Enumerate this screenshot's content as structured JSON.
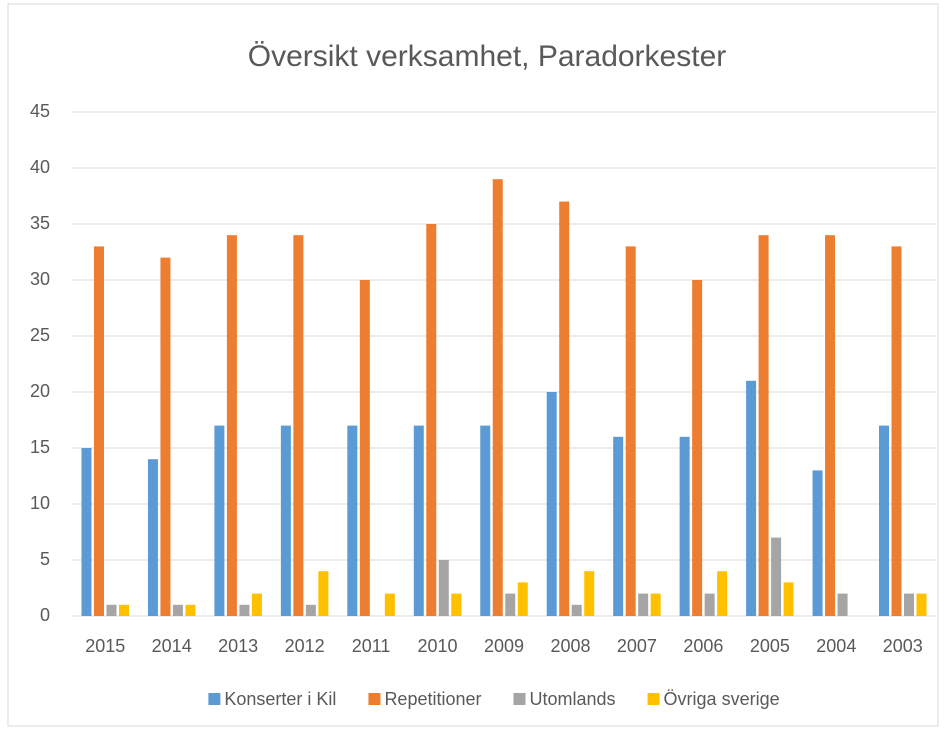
{
  "chart_data": {
    "type": "bar",
    "title": "Översikt verksamhet, Paradorkester",
    "categories": [
      "2015",
      "2014",
      "2013",
      "2012",
      "2011",
      "2010",
      "2009",
      "2008",
      "2007",
      "2006",
      "2005",
      "2004",
      "2003"
    ],
    "series": [
      {
        "name": "Konserter i Kil",
        "color": "#5b9bd5",
        "values": [
          15,
          14,
          17,
          17,
          17,
          17,
          17,
          20,
          16,
          16,
          21,
          13,
          17
        ]
      },
      {
        "name": "Repetitioner",
        "color": "#ed7d31",
        "values": [
          33,
          32,
          34,
          34,
          30,
          35,
          39,
          37,
          33,
          30,
          34,
          34,
          33
        ]
      },
      {
        "name": "Utomlands",
        "color": "#a5a5a5",
        "values": [
          1,
          1,
          1,
          1,
          0,
          5,
          2,
          1,
          2,
          2,
          7,
          2,
          2
        ]
      },
      {
        "name": "Övriga sverige",
        "color": "#ffc000",
        "values": [
          1,
          1,
          2,
          4,
          2,
          2,
          3,
          4,
          2,
          4,
          3,
          0,
          2
        ]
      }
    ],
    "ylim": [
      0,
      45
    ],
    "yticks": [
      0,
      5,
      10,
      15,
      20,
      25,
      30,
      35,
      40,
      45
    ],
    "grid": true,
    "legend": "bottom"
  }
}
